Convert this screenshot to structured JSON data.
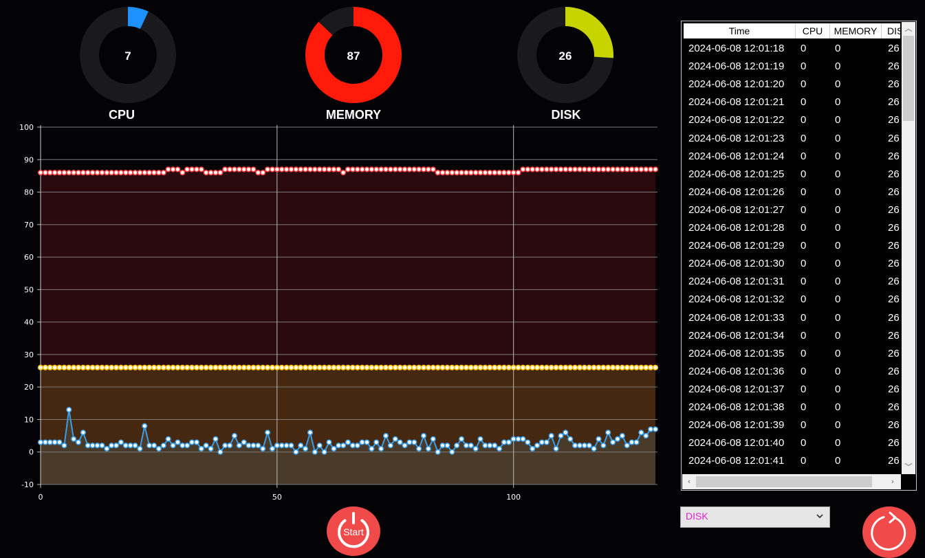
{
  "gauges": [
    {
      "label": "CPU",
      "value": 7,
      "color": "#1e90ff"
    },
    {
      "label": "MEMORY",
      "value": 87,
      "color": "#ff1a0a"
    },
    {
      "label": "DISK",
      "value": 26,
      "color": "#c8d400"
    }
  ],
  "chart_data": {
    "type": "line",
    "x_ticks": [
      0,
      50,
      100
    ],
    "y_ticks": [
      -10,
      0,
      10,
      20,
      30,
      40,
      50,
      60,
      70,
      80,
      90,
      100
    ],
    "ylim": [
      -10,
      100
    ],
    "xlim": [
      0,
      130
    ],
    "grid": true,
    "series": [
      {
        "color": "#ff4040",
        "fill": "#2a0a0e",
        "values": [
          86,
          86,
          86,
          86,
          86,
          86,
          86,
          86,
          86,
          86,
          86,
          86,
          86,
          86,
          86,
          86,
          86,
          86,
          86,
          86,
          86,
          86,
          86,
          86,
          86,
          86,
          86,
          87,
          87,
          87,
          86,
          87,
          87,
          87,
          87,
          86,
          86,
          86,
          86,
          87,
          87,
          87,
          87,
          87,
          87,
          87,
          86,
          86,
          87,
          87,
          87,
          87,
          87,
          87,
          87,
          87,
          87,
          87,
          87,
          87,
          87,
          87,
          87,
          87,
          86,
          87,
          87,
          87,
          87,
          87,
          87,
          87,
          87,
          87,
          87,
          87,
          87,
          87,
          87,
          87,
          87,
          87,
          87,
          87,
          86,
          86,
          86,
          86,
          86,
          86,
          86,
          86,
          86,
          86,
          86,
          86,
          86,
          86,
          86,
          86,
          86,
          86,
          87,
          87,
          87,
          87,
          87,
          87,
          87,
          87,
          87,
          87,
          87,
          87,
          87,
          87,
          87,
          87,
          87,
          87,
          87,
          87,
          87,
          87,
          87,
          87,
          87,
          87,
          87,
          87,
          87
        ]
      },
      {
        "color": "#ffc200",
        "fill": "#462710",
        "values": [
          26,
          26,
          26,
          26,
          26,
          26,
          26,
          26,
          26,
          26,
          26,
          26,
          26,
          26,
          26,
          26,
          26,
          26,
          26,
          26,
          26,
          26,
          26,
          26,
          26,
          26,
          26,
          26,
          26,
          26,
          26,
          26,
          26,
          26,
          26,
          26,
          26,
          26,
          26,
          26,
          26,
          26,
          26,
          26,
          26,
          26,
          26,
          26,
          26,
          26,
          26,
          26,
          26,
          26,
          26,
          26,
          26,
          26,
          26,
          26,
          26,
          26,
          26,
          26,
          26,
          26,
          26,
          26,
          26,
          26,
          26,
          26,
          26,
          26,
          26,
          26,
          26,
          26,
          26,
          26,
          26,
          26,
          26,
          26,
          26,
          26,
          26,
          26,
          26,
          26,
          26,
          26,
          26,
          26,
          26,
          26,
          26,
          26,
          26,
          26,
          26,
          26,
          26,
          26,
          26,
          26,
          26,
          26,
          26,
          26,
          26,
          26,
          26,
          26,
          26,
          26,
          26,
          26,
          26,
          26,
          26,
          26,
          26,
          26,
          26,
          26,
          26,
          26,
          26,
          26,
          26
        ]
      },
      {
        "color": "#3a9ee8",
        "fill": "#4a3a2a",
        "values": [
          3,
          3,
          3,
          3,
          3,
          2,
          13,
          4,
          3,
          6,
          2,
          2,
          2,
          2,
          1,
          2,
          2,
          3,
          2,
          2,
          2,
          1,
          8,
          2,
          2,
          1,
          2,
          4,
          2,
          3,
          2,
          2,
          3,
          3,
          1,
          2,
          1,
          4,
          0,
          2,
          2,
          5,
          2,
          3,
          2,
          2,
          2,
          1,
          6,
          1,
          2,
          2,
          2,
          2,
          0,
          2,
          1,
          6,
          0,
          2,
          0,
          3,
          1,
          2,
          2,
          3,
          2,
          2,
          3,
          3,
          1,
          3,
          1,
          5,
          2,
          4,
          3,
          2,
          3,
          3,
          1,
          5,
          1,
          4,
          0,
          2,
          2,
          0,
          2,
          4,
          2,
          2,
          1,
          4,
          2,
          2,
          2,
          1,
          3,
          3,
          4,
          4,
          4,
          3,
          1,
          2,
          3,
          3,
          5,
          1,
          5,
          6,
          4,
          2,
          2,
          2,
          2,
          1,
          4,
          2,
          6,
          3,
          4,
          5,
          2,
          3,
          3,
          6,
          5,
          7,
          7
        ]
      }
    ]
  },
  "table": {
    "headers": [
      "Time",
      "CPU",
      "MEMORY",
      "DISK"
    ],
    "rows": [
      [
        "2024-06-08 12:01:18",
        "0",
        "0",
        "26"
      ],
      [
        "2024-06-08 12:01:19",
        "0",
        "0",
        "26"
      ],
      [
        "2024-06-08 12:01:20",
        "0",
        "0",
        "26"
      ],
      [
        "2024-06-08 12:01:21",
        "0",
        "0",
        "26"
      ],
      [
        "2024-06-08 12:01:22",
        "0",
        "0",
        "26"
      ],
      [
        "2024-06-08 12:01:23",
        "0",
        "0",
        "26"
      ],
      [
        "2024-06-08 12:01:24",
        "0",
        "0",
        "26"
      ],
      [
        "2024-06-08 12:01:25",
        "0",
        "0",
        "26"
      ],
      [
        "2024-06-08 12:01:26",
        "0",
        "0",
        "26"
      ],
      [
        "2024-06-08 12:01:27",
        "0",
        "0",
        "26"
      ],
      [
        "2024-06-08 12:01:28",
        "0",
        "0",
        "26"
      ],
      [
        "2024-06-08 12:01:29",
        "0",
        "0",
        "26"
      ],
      [
        "2024-06-08 12:01:30",
        "0",
        "0",
        "26"
      ],
      [
        "2024-06-08 12:01:31",
        "0",
        "0",
        "26"
      ],
      [
        "2024-06-08 12:01:32",
        "0",
        "0",
        "26"
      ],
      [
        "2024-06-08 12:01:33",
        "0",
        "0",
        "26"
      ],
      [
        "2024-06-08 12:01:34",
        "0",
        "0",
        "26"
      ],
      [
        "2024-06-08 12:01:35",
        "0",
        "0",
        "26"
      ],
      [
        "2024-06-08 12:01:36",
        "0",
        "0",
        "26"
      ],
      [
        "2024-06-08 12:01:37",
        "0",
        "0",
        "26"
      ],
      [
        "2024-06-08 12:01:38",
        "0",
        "0",
        "26"
      ],
      [
        "2024-06-08 12:01:39",
        "0",
        "0",
        "26"
      ],
      [
        "2024-06-08 12:01:40",
        "0",
        "0",
        "26"
      ],
      [
        "2024-06-08 12:01:41",
        "0",
        "0",
        "26"
      ]
    ]
  },
  "dropdown": {
    "selected": "DISK"
  },
  "start_button": {
    "label": "Start",
    "icon": "power-icon"
  },
  "refresh_button": {
    "icon": "refresh-icon"
  }
}
